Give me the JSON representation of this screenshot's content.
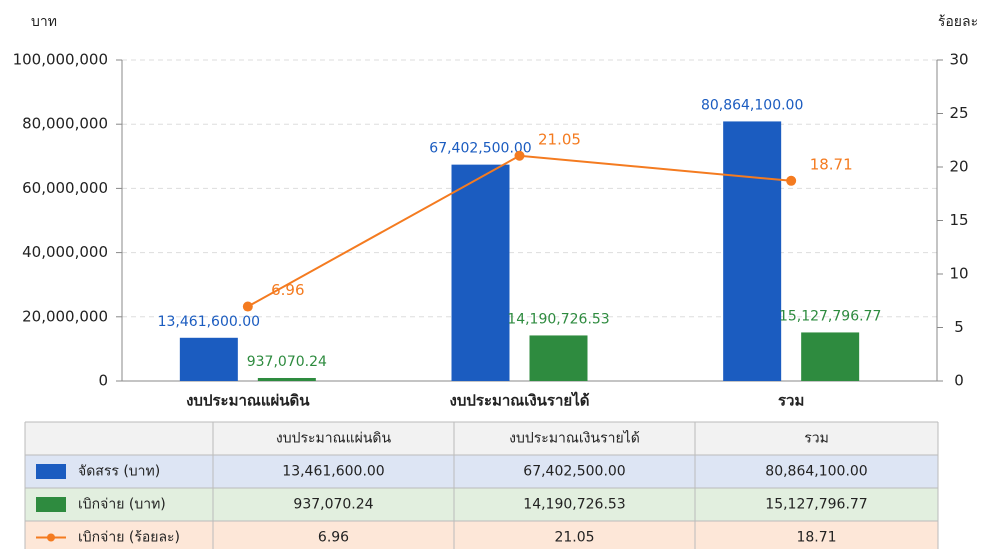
{
  "chart_data": {
    "type": "combo",
    "y_label": "บาท",
    "y2_label": "ร้อยละ",
    "categories": [
      "งบประมาณแผ่นดิน",
      "งบประมาณเงินรายได้",
      "รวม"
    ],
    "series": [
      {
        "name": "จัดสรร (บาท)",
        "type": "bar",
        "color": "#1b5cc0",
        "values": [
          13461600,
          67402500,
          80864100
        ],
        "value_labels": [
          "13,461,600.00",
          "67,402,500.00",
          "80,864,100.00"
        ]
      },
      {
        "name": "เบิกจ่าย (บาท)",
        "type": "bar",
        "color": "#2e8b3f",
        "values": [
          937070.24,
          14190726.53,
          15127796.77
        ],
        "value_labels": [
          "937,070.24",
          "14,190,726.53",
          "15,127,796.77"
        ]
      },
      {
        "name": "เบิกจ่าย (ร้อยละ)",
        "type": "line",
        "axis": "y2",
        "color": "#f47b20",
        "values": [
          6.96,
          21.05,
          18.71
        ]
      }
    ],
    "ylim": [
      0,
      100000000
    ],
    "yticks": [
      0,
      {
        "value": 20000000,
        "label": "20,000,000"
      },
      {
        "value": 40000000,
        "label": "40,000,000"
      },
      {
        "value": 60000000,
        "label": "60,000,000"
      },
      {
        "value": 80000000,
        "label": "80,000,000"
      },
      {
        "value": 100000000,
        "label": "100,000,000"
      }
    ],
    "y2lim": [
      0,
      30
    ],
    "y2ticks": [
      0,
      5,
      10,
      15,
      20,
      25,
      30
    ],
    "grid": true
  }
}
